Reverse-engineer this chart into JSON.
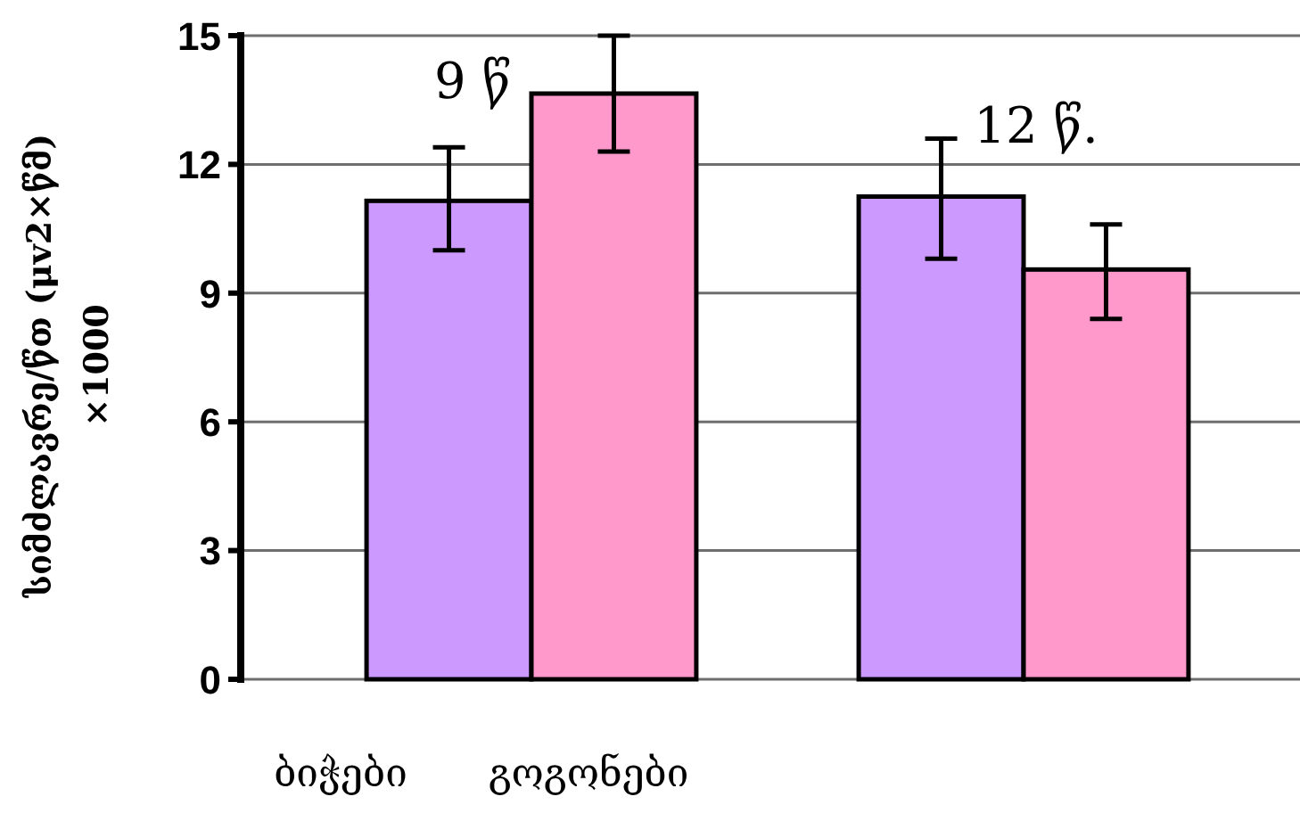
{
  "chart_data": {
    "type": "bar",
    "ylabel": "სიმძლავრე/წთ (μv2×წმ)\n×1000",
    "categories": [
      "9 წ",
      "12 წ."
    ],
    "series": [
      {
        "name": "ბიჭები",
        "color": "#cc99ff",
        "values": [
          11.15,
          11.25
        ],
        "errors": [
          [
            10.0,
            12.4
          ],
          [
            9.8,
            12.6
          ]
        ]
      },
      {
        "name": "გოგონები",
        "color": "#ff99cc",
        "values": [
          13.65,
          9.55
        ],
        "errors": [
          [
            12.3,
            15.0
          ],
          [
            8.4,
            10.6
          ]
        ]
      }
    ],
    "ylim": [
      0,
      15
    ],
    "yticks": [
      0,
      3,
      6,
      9,
      12,
      15
    ],
    "grid": "y",
    "legend": "bottom"
  }
}
